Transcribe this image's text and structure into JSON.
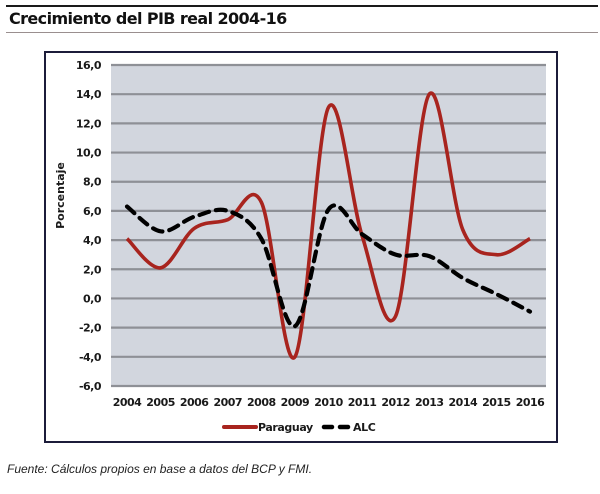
{
  "chart_data": {
    "type": "line",
    "title": "Crecimiento del PIB real 2004-16",
    "xlabel": "",
    "ylabel": "Porcentaje",
    "categories": [
      "2004",
      "2005",
      "2006",
      "2007",
      "2008",
      "2009",
      "2010",
      "2011",
      "2012",
      "2013",
      "2014",
      "2015",
      "2016"
    ],
    "yticks": [
      "16,0",
      "14,0",
      "12,0",
      "10,0",
      "8,0",
      "6,0",
      "4,0",
      "2,0",
      "0,0",
      "-2,0",
      "-4,0",
      "-6,0"
    ],
    "ylim": [
      -6,
      16
    ],
    "grid": true,
    "legend_position": "bottom",
    "series": [
      {
        "name": "Paraguay",
        "style": "solid",
        "color": "#a8241e",
        "values": [
          4.1,
          2.1,
          4.8,
          5.4,
          6.6,
          -4.0,
          13.1,
          4.3,
          -1.2,
          14.0,
          4.7,
          3.0,
          4.1
        ]
      },
      {
        "name": "ALC",
        "style": "dashed",
        "color": "#000000",
        "values": [
          6.3,
          4.6,
          5.6,
          6.0,
          4.1,
          -1.9,
          6.1,
          4.4,
          3.0,
          2.9,
          1.4,
          0.3,
          -0.9
        ]
      }
    ]
  },
  "source_note": "Fuente: Cálculos propios en base a datos del BCP y FMI.",
  "colors": {
    "plot_bg": "#d2d6de",
    "grid": "#8e9096",
    "frame": "#1c1c3a"
  }
}
